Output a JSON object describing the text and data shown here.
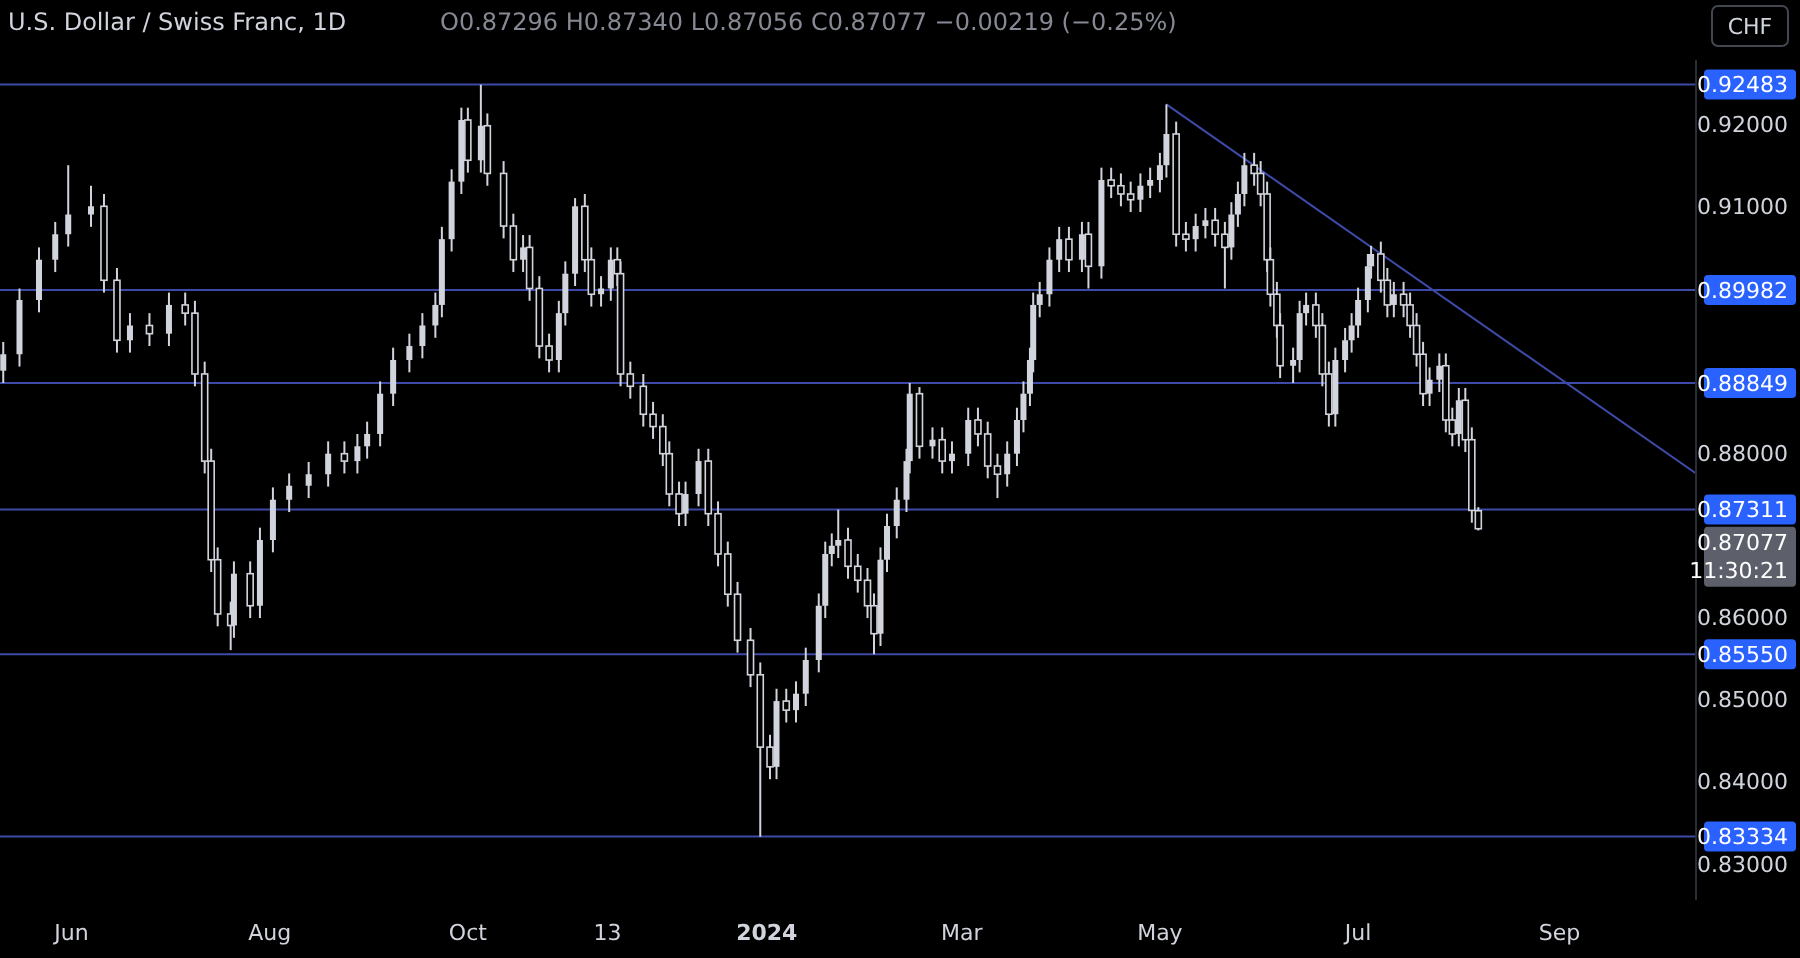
{
  "chart_data": {
    "type": "candlestick",
    "title": "U.S. Dollar / Swiss Franc, 1D",
    "annotations": [
      "O0.87296 H0.87340 L0.87056 C0.87077 −0.00219 (−0.25%)",
      "0.87077",
      "11:30:21",
      "CHF"
    ],
    "color": "#d1d4dc",
    "x": [
      "2023-05-11",
      "2023-05-16",
      "2023-05-22",
      "2023-05-27",
      "2023-05-31",
      "2023-06-07",
      "2023-06-11",
      "2023-06-15",
      "2023-06-19",
      "2023-06-25",
      "2023-07-01",
      "2023-07-06",
      "2023-07-09",
      "2023-07-12",
      "2023-07-14",
      "2023-07-16",
      "2023-07-20",
      "2023-07-21",
      "2023-07-26",
      "2023-07-29",
      "2023-08-02",
      "2023-08-07",
      "2023-08-13",
      "2023-08-19",
      "2023-08-24",
      "2023-08-28",
      "2023-08-31",
      "2023-09-04",
      "2023-09-08",
      "2023-09-13",
      "2023-09-17",
      "2023-09-21",
      "2023-09-23",
      "2023-09-26",
      "2023-09-29",
      "2023-10-01",
      "2023-10-05",
      "2023-10-07",
      "2023-10-12",
      "2023-10-15",
      "2023-10-18",
      "2023-10-20",
      "2023-10-23",
      "2023-10-26",
      "2023-10-29",
      "2023-10-31",
      "2023-11-03",
      "2023-11-06",
      "2023-11-08",
      "2023-11-11",
      "2023-11-14",
      "2023-11-16",
      "2023-11-17",
      "2023-11-20",
      "2023-11-24",
      "2023-11-27",
      "2023-11-30",
      "2023-12-02",
      "2023-12-05",
      "2023-12-07",
      "2023-12-11",
      "2023-12-14",
      "2023-12-17",
      "2023-12-20",
      "2023-12-23",
      "2023-12-27",
      "2023-12-30",
      "2024-01-02",
      "2024-01-04",
      "2024-01-07",
      "2024-01-10",
      "2024-01-13",
      "2024-01-17",
      "2024-01-19",
      "2024-01-21",
      "2024-01-23",
      "2024-01-26",
      "2024-01-29",
      "2024-02-01",
      "2024-02-03",
      "2024-02-05",
      "2024-02-07",
      "2024-02-10",
      "2024-02-13",
      "2024-02-14",
      "2024-02-17",
      "2024-02-21",
      "2024-02-24",
      "2024-02-27",
      "2024-03-03",
      "2024-03-06",
      "2024-03-09",
      "2024-03-12",
      "2024-03-15",
      "2024-03-18",
      "2024-03-20",
      "2024-03-22",
      "2024-03-23",
      "2024-03-25",
      "2024-03-28",
      "2024-03-31",
      "2024-04-03",
      "2024-04-07",
      "2024-04-09",
      "2024-04-13",
      "2024-04-16",
      "2024-04-19",
      "2024-04-22",
      "2024-04-25",
      "2024-04-28",
      "2024-05-01",
      "2024-05-03",
      "2024-05-06",
      "2024-05-09",
      "2024-05-12",
      "2024-05-15",
      "2024-05-18",
      "2024-05-21",
      "2024-05-23",
      "2024-05-25",
      "2024-05-27",
      "2024-05-30",
      "2024-06-01",
      "2024-06-03",
      "2024-06-04",
      "2024-06-06",
      "2024-06-07",
      "2024-06-11",
      "2024-06-13",
      "2024-06-15",
      "2024-06-18",
      "2024-06-20",
      "2024-06-22",
      "2024-06-24",
      "2024-06-27",
      "2024-06-29",
      "2024-07-01",
      "2024-07-04",
      "2024-07-05",
      "2024-07-08",
      "2024-07-10",
      "2024-07-12",
      "2024-07-15",
      "2024-07-17",
      "2024-07-19",
      "2024-07-21",
      "2024-07-23",
      "2024-07-26",
      "2024-07-28",
      "2024-07-30",
      "2024-08-01",
      "2024-08-03",
      "2024-08-05",
      "2024-08-07"
    ],
    "ohlc": [
      [
        0.89,
        0.8935,
        0.8885,
        0.892
      ],
      [
        0.892,
        0.9,
        0.8905,
        0.8986
      ],
      [
        0.8986,
        0.905,
        0.8971,
        0.9035
      ],
      [
        0.9035,
        0.9081,
        0.902,
        0.9066
      ],
      [
        0.9066,
        0.915,
        0.9051,
        0.909
      ],
      [
        0.909,
        0.9125,
        0.9075,
        0.91
      ],
      [
        0.91,
        0.9115,
        0.8995,
        0.901
      ],
      [
        0.901,
        0.9025,
        0.8922,
        0.8937
      ],
      [
        0.8937,
        0.897,
        0.8922,
        0.8955
      ],
      [
        0.8955,
        0.897,
        0.893,
        0.8945
      ],
      [
        0.8945,
        0.8995,
        0.893,
        0.898
      ],
      [
        0.898,
        0.8995,
        0.8955,
        0.897
      ],
      [
        0.897,
        0.8985,
        0.8881,
        0.8896
      ],
      [
        0.8896,
        0.8911,
        0.8775,
        0.879
      ],
      [
        0.879,
        0.8805,
        0.8655,
        0.867
      ],
      [
        0.867,
        0.8685,
        0.8589,
        0.8604
      ],
      [
        0.8604,
        0.8619,
        0.856,
        0.859
      ],
      [
        0.859,
        0.8668,
        0.8575,
        0.8653
      ],
      [
        0.8653,
        0.8668,
        0.8599,
        0.8614
      ],
      [
        0.8614,
        0.8709,
        0.8599,
        0.8694
      ],
      [
        0.8694,
        0.8758,
        0.8679,
        0.8743
      ],
      [
        0.8743,
        0.8775,
        0.8728,
        0.876
      ],
      [
        0.876,
        0.8789,
        0.8745,
        0.8774
      ],
      [
        0.8774,
        0.8814,
        0.8759,
        0.8799
      ],
      [
        0.8799,
        0.8814,
        0.8775,
        0.879
      ],
      [
        0.879,
        0.8823,
        0.8775,
        0.8808
      ],
      [
        0.8808,
        0.8838,
        0.8793,
        0.8823
      ],
      [
        0.8823,
        0.8887,
        0.8808,
        0.8872
      ],
      [
        0.8872,
        0.8928,
        0.8857,
        0.8913
      ],
      [
        0.8913,
        0.8945,
        0.8898,
        0.893
      ],
      [
        0.893,
        0.897,
        0.8915,
        0.8955
      ],
      [
        0.8955,
        0.8995,
        0.894,
        0.898
      ],
      [
        0.898,
        0.9075,
        0.8965,
        0.906
      ],
      [
        0.906,
        0.9145,
        0.9045,
        0.913
      ],
      [
        0.913,
        0.922,
        0.9115,
        0.9205
      ],
      [
        0.9205,
        0.922,
        0.9141,
        0.9156
      ],
      [
        0.9156,
        0.9248,
        0.9141,
        0.9198
      ],
      [
        0.9198,
        0.9213,
        0.9125,
        0.914
      ],
      [
        0.914,
        0.9155,
        0.9061,
        0.9076
      ],
      [
        0.9076,
        0.9091,
        0.902,
        0.9035
      ],
      [
        0.9035,
        0.9065,
        0.902,
        0.905
      ],
      [
        0.905,
        0.9065,
        0.8985,
        0.9
      ],
      [
        0.9,
        0.9015,
        0.8915,
        0.893
      ],
      [
        0.893,
        0.8945,
        0.8898,
        0.8913
      ],
      [
        0.8913,
        0.8985,
        0.8898,
        0.897
      ],
      [
        0.897,
        0.9033,
        0.8955,
        0.9018
      ],
      [
        0.9018,
        0.911,
        0.9003,
        0.91
      ],
      [
        0.91,
        0.9115,
        0.902,
        0.9035
      ],
      [
        0.9035,
        0.905,
        0.8978,
        0.8993
      ],
      [
        0.8993,
        0.9015,
        0.8978,
        0.9
      ],
      [
        0.9,
        0.905,
        0.8985,
        0.9035
      ],
      [
        0.9035,
        0.905,
        0.9003,
        0.9018
      ],
      [
        0.9018,
        0.9033,
        0.8881,
        0.8896
      ],
      [
        0.8896,
        0.8911,
        0.8866,
        0.8881
      ],
      [
        0.8881,
        0.8896,
        0.8832,
        0.8847
      ],
      [
        0.8847,
        0.8862,
        0.8817,
        0.8832
      ],
      [
        0.8832,
        0.8847,
        0.8784,
        0.8799
      ],
      [
        0.8799,
        0.8814,
        0.8735,
        0.875
      ],
      [
        0.875,
        0.8765,
        0.8711,
        0.8726
      ],
      [
        0.8726,
        0.8765,
        0.8711,
        0.875
      ],
      [
        0.875,
        0.8805,
        0.8735,
        0.879
      ],
      [
        0.879,
        0.8805,
        0.8711,
        0.8726
      ],
      [
        0.8726,
        0.8741,
        0.8662,
        0.8677
      ],
      [
        0.8677,
        0.8692,
        0.8613,
        0.8628
      ],
      [
        0.8628,
        0.8643,
        0.8557,
        0.8572
      ],
      [
        0.8572,
        0.8587,
        0.8515,
        0.853
      ],
      [
        0.853,
        0.8545,
        0.8333,
        0.8442
      ],
      [
        0.8442,
        0.8457,
        0.8403,
        0.8418
      ],
      [
        0.8418,
        0.8513,
        0.8403,
        0.8498
      ],
      [
        0.8498,
        0.8513,
        0.8472,
        0.8487
      ],
      [
        0.8487,
        0.8522,
        0.8472,
        0.8507
      ],
      [
        0.8507,
        0.8563,
        0.8492,
        0.8548
      ],
      [
        0.8548,
        0.8629,
        0.8533,
        0.8614
      ],
      [
        0.8614,
        0.8692,
        0.8599,
        0.8677
      ],
      [
        0.8677,
        0.8702,
        0.8662,
        0.8687
      ],
      [
        0.8687,
        0.8731,
        0.8672,
        0.8694
      ],
      [
        0.8694,
        0.8709,
        0.8647,
        0.8662
      ],
      [
        0.8662,
        0.8677,
        0.863,
        0.8645
      ],
      [
        0.8645,
        0.866,
        0.8599,
        0.8614
      ],
      [
        0.8614,
        0.8629,
        0.8555,
        0.858
      ],
      [
        0.858,
        0.8685,
        0.8565,
        0.867
      ],
      [
        0.867,
        0.8726,
        0.8655,
        0.8711
      ],
      [
        0.8711,
        0.8758,
        0.8696,
        0.8743
      ],
      [
        0.8743,
        0.8805,
        0.8728,
        0.879
      ],
      [
        0.879,
        0.8885,
        0.8775,
        0.8872
      ],
      [
        0.8872,
        0.888,
        0.8793,
        0.8808
      ],
      [
        0.8808,
        0.8831,
        0.8793,
        0.8816
      ],
      [
        0.8816,
        0.8831,
        0.8775,
        0.879
      ],
      [
        0.879,
        0.8814,
        0.8775,
        0.8799
      ],
      [
        0.8799,
        0.8855,
        0.8784,
        0.884
      ],
      [
        0.884,
        0.8855,
        0.8808,
        0.8823
      ],
      [
        0.8823,
        0.8838,
        0.8769,
        0.8784
      ],
      [
        0.8784,
        0.8799,
        0.8745,
        0.8774
      ],
      [
        0.8774,
        0.8814,
        0.8759,
        0.8799
      ],
      [
        0.8799,
        0.8855,
        0.8784,
        0.884
      ],
      [
        0.884,
        0.8887,
        0.8825,
        0.8872
      ],
      [
        0.8872,
        0.8928,
        0.8857,
        0.8913
      ],
      [
        0.8913,
        0.8995,
        0.8898,
        0.898
      ],
      [
        0.898,
        0.9008,
        0.8965,
        0.8993
      ],
      [
        0.8993,
        0.905,
        0.8978,
        0.9035
      ],
      [
        0.9035,
        0.9075,
        0.902,
        0.906
      ],
      [
        0.906,
        0.9075,
        0.902,
        0.9035
      ],
      [
        0.9035,
        0.9081,
        0.902,
        0.9066
      ],
      [
        0.9066,
        0.9081,
        0.9,
        0.9027
      ],
      [
        0.9027,
        0.9147,
        0.9012,
        0.9132
      ],
      [
        0.9132,
        0.9147,
        0.911,
        0.9125
      ],
      [
        0.9125,
        0.914,
        0.91,
        0.9115
      ],
      [
        0.9115,
        0.913,
        0.9093,
        0.9108
      ],
      [
        0.9108,
        0.914,
        0.9093,
        0.9125
      ],
      [
        0.9125,
        0.9147,
        0.911,
        0.9132
      ],
      [
        0.9132,
        0.9165,
        0.9117,
        0.915
      ],
      [
        0.915,
        0.9224,
        0.9135,
        0.9188
      ],
      [
        0.9188,
        0.9203,
        0.9051,
        0.9066
      ],
      [
        0.9066,
        0.9081,
        0.9045,
        0.906
      ],
      [
        0.906,
        0.9091,
        0.9045,
        0.9076
      ],
      [
        0.9076,
        0.9098,
        0.9061,
        0.9083
      ],
      [
        0.9083,
        0.9098,
        0.9051,
        0.9066
      ],
      [
        0.9066,
        0.9081,
        0.9,
        0.905
      ],
      [
        0.905,
        0.9105,
        0.9035,
        0.909
      ],
      [
        0.909,
        0.913,
        0.9075,
        0.9115
      ],
      [
        0.9115,
        0.9165,
        0.91,
        0.915
      ],
      [
        0.915,
        0.9165,
        0.9125,
        0.914
      ],
      [
        0.914,
        0.9155,
        0.91,
        0.9115
      ],
      [
        0.9115,
        0.913,
        0.902,
        0.9035
      ],
      [
        0.9035,
        0.905,
        0.8978,
        0.8993
      ],
      [
        0.8993,
        0.9008,
        0.894,
        0.8955
      ],
      [
        0.8955,
        0.897,
        0.8891,
        0.8906
      ],
      [
        0.8906,
        0.8928,
        0.8885,
        0.8913
      ],
      [
        0.8913,
        0.8985,
        0.8898,
        0.897
      ],
      [
        0.897,
        0.8995,
        0.8955,
        0.898
      ],
      [
        0.898,
        0.8995,
        0.894,
        0.8955
      ],
      [
        0.8955,
        0.897,
        0.8881,
        0.8896
      ],
      [
        0.8896,
        0.8911,
        0.8832,
        0.8847
      ],
      [
        0.8847,
        0.8928,
        0.8832,
        0.8913
      ],
      [
        0.8913,
        0.8952,
        0.8898,
        0.8937
      ],
      [
        0.8937,
        0.897,
        0.8922,
        0.8955
      ],
      [
        0.8955,
        0.9001,
        0.894,
        0.8986
      ],
      [
        0.8986,
        0.9042,
        0.8971,
        0.9027
      ],
      [
        0.9027,
        0.9052,
        0.9012,
        0.9042
      ],
      [
        0.9042,
        0.9057,
        0.8995,
        0.901
      ],
      [
        0.901,
        0.9025,
        0.8965,
        0.898
      ],
      [
        0.898,
        0.9008,
        0.8965,
        0.8993
      ],
      [
        0.8993,
        0.9008,
        0.8965,
        0.898
      ],
      [
        0.898,
        0.8995,
        0.894,
        0.8955
      ],
      [
        0.8955,
        0.897,
        0.8905,
        0.892
      ],
      [
        0.892,
        0.8935,
        0.8857,
        0.8872
      ],
      [
        0.8872,
        0.8904,
        0.8857,
        0.8889
      ],
      [
        0.8889,
        0.8921,
        0.8874,
        0.8906
      ],
      [
        0.8906,
        0.8921,
        0.8825,
        0.884
      ],
      [
        0.884,
        0.8855,
        0.8808,
        0.8823
      ],
      [
        0.8823,
        0.8879,
        0.8808,
        0.8864
      ],
      [
        0.8864,
        0.8879,
        0.8801,
        0.8816
      ],
      [
        0.8816,
        0.8831,
        0.8715,
        0.873
      ],
      [
        0.87296,
        0.8734,
        0.87056,
        0.87077
      ]
    ],
    "series": [
      {
        "type": "line",
        "color": "#3d4aa8",
        "x": [
          "2024-05-03",
          "2024-10-13"
        ],
        "values": [
          0.9224,
          0.8775
        ]
      }
    ],
    "ref_lines": [
      {
        "axis": "y",
        "value": 0.92483,
        "label": "0.92483",
        "color": "#3d4aa8"
      },
      {
        "axis": "y",
        "value": 0.89982,
        "label": "0.89982",
        "color": "#3d4aa8"
      },
      {
        "axis": "y",
        "value": 0.88849,
        "label": "0.88849",
        "color": "#3d4aa8"
      },
      {
        "axis": "y",
        "value": 0.87311,
        "label": "0.87311",
        "color": "#3d4aa8"
      },
      {
        "axis": "y",
        "value": 0.8555,
        "label": "0.85550",
        "color": "#3d4aa8"
      },
      {
        "axis": "y",
        "value": 0.83334,
        "label": "0.83334",
        "color": "#3d4aa8"
      }
    ],
    "xlim": [
      "2023-05-10",
      "2024-10-13"
    ],
    "xticks": [
      {
        "value": "2023-06-01",
        "label": "Jun"
      },
      {
        "value": "2023-08-01",
        "label": "Aug"
      },
      {
        "value": "2023-10-01",
        "label": "Oct"
      },
      {
        "value": "2023-11-13",
        "label": "13"
      },
      {
        "value": "2024-01-01",
        "label": "2024"
      },
      {
        "value": "2024-03-01",
        "label": "Mar"
      },
      {
        "value": "2024-05-01",
        "label": "May"
      },
      {
        "value": "2024-07-01",
        "label": "Jul"
      },
      {
        "value": "2024-09-01",
        "label": "Sep"
      }
    ],
    "ylim": [
      0.8256,
      0.9278
    ],
    "yticks": [
      {
        "value": 0.83,
        "label": "0.83000"
      },
      {
        "value": 0.84,
        "label": "0.84000"
      },
      {
        "value": 0.85,
        "label": "0.85000"
      },
      {
        "value": 0.86,
        "label": "0.86000"
      },
      {
        "value": 0.88,
        "label": "0.88000"
      },
      {
        "value": 0.91,
        "label": "0.91000"
      },
      {
        "value": 0.92,
        "label": "0.92000"
      }
    ],
    "grid": false
  }
}
